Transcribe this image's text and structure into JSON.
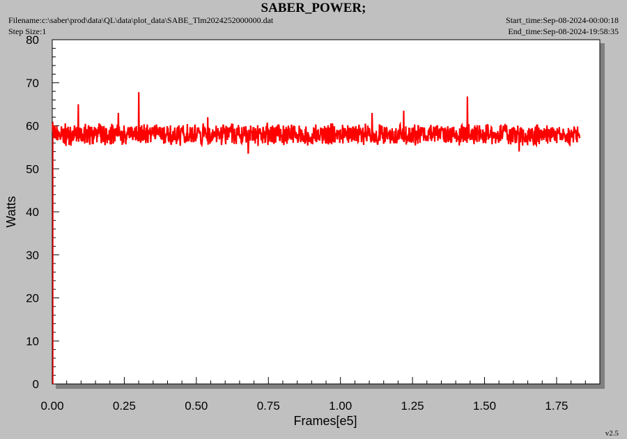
{
  "header": {
    "title": "SABER_POWER;",
    "filename": "Filename:c:\\saber\\prod\\data\\QL\\data\\plot_data\\SABE_Tlm2024252000000.dat",
    "step_size": "Step Size:1",
    "start_time": "Start_time:Sep-08-2024-00:00:18",
    "end_time": "End_time:Sep-08-2024-19:58:35"
  },
  "footer": {
    "version": "v2.5"
  },
  "chart_data": {
    "type": "line",
    "title": "SABER_POWER;",
    "xlabel": "Frames[e5]",
    "ylabel": "Watts",
    "xlim": [
      0,
      1.9
    ],
    "ylim": [
      0,
      80
    ],
    "x_ticks": [
      "0.00",
      "0.25",
      "0.50",
      "0.75",
      "1.00",
      "1.25",
      "1.50",
      "1.75"
    ],
    "y_ticks": [
      "0",
      "10",
      "20",
      "30",
      "40",
      "50",
      "60",
      "70",
      "80"
    ],
    "grid": false,
    "series": [
      {
        "color": "#ff0000",
        "x_range": [
          0,
          1.83
        ],
        "mean": 58,
        "typical_low": 55.5,
        "typical_high": 61,
        "spikes": [
          {
            "x": 0.09,
            "y": 65
          },
          {
            "x": 0.23,
            "y": 63
          },
          {
            "x": 0.3,
            "y": 67.8
          },
          {
            "x": 0.54,
            "y": 62
          },
          {
            "x": 0.68,
            "y": 53.5
          },
          {
            "x": 1.11,
            "y": 63
          },
          {
            "x": 1.22,
            "y": 63.5
          },
          {
            "x": 1.44,
            "y": 66.8
          },
          {
            "x": 1.62,
            "y": 54
          }
        ]
      }
    ]
  }
}
